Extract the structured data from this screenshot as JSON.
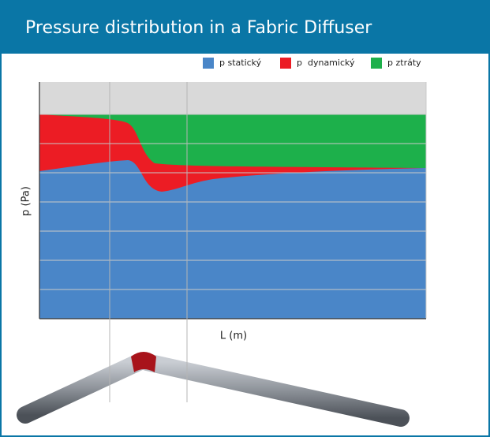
{
  "header": {
    "title": "Pressure distribution in a Fabric Diffuser"
  },
  "legend": [
    "p statický",
    "p  dynamický",
    "p ztráty"
  ],
  "axes": {
    "y_label": "p (Pa)",
    "x_label": "L (m)"
  }
}
